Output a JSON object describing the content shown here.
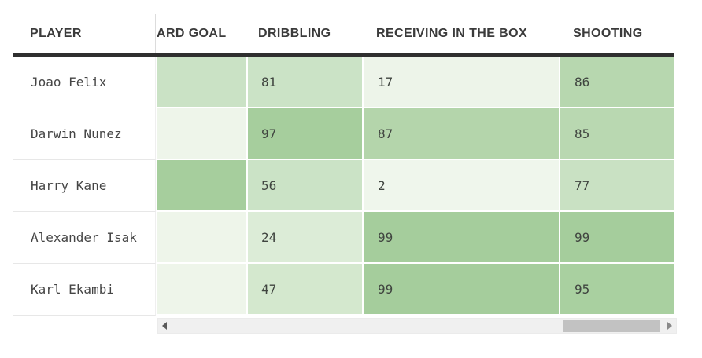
{
  "table": {
    "headers": [
      {
        "label": "PLAYER"
      },
      {
        "label": "ARD GOAL",
        "note": "clipped-by-horizontal-scroll"
      },
      {
        "label": "DRIBBLING"
      },
      {
        "label": "RECEIVING IN THE BOX"
      },
      {
        "label": "SHOOTING"
      }
    ],
    "rows": [
      {
        "player": "Joao Felix",
        "cells": [
          {
            "column": "ARD GOAL",
            "value": "",
            "color": "#cae2c5"
          },
          {
            "column": "DRIBBLING",
            "value": "81",
            "color": "#cbe3c6"
          },
          {
            "column": "RECEIVING IN THE BOX",
            "value": "17",
            "color": "#edf4e9"
          },
          {
            "column": "SHOOTING",
            "value": "86",
            "color": "#b7d7af"
          }
        ]
      },
      {
        "player": "Darwin Nunez",
        "cells": [
          {
            "column": "ARD GOAL",
            "value": "",
            "color": "#eef5ea"
          },
          {
            "column": "DRIBBLING",
            "value": "97",
            "color": "#a6ce9d"
          },
          {
            "column": "RECEIVING IN THE BOX",
            "value": "87",
            "color": "#b4d5ab"
          },
          {
            "column": "SHOOTING",
            "value": "85",
            "color": "#b9d8b1"
          }
        ]
      },
      {
        "player": "Harry Kane",
        "cells": [
          {
            "column": "ARD GOAL",
            "value": "",
            "color": "#a6ce9d"
          },
          {
            "column": "DRIBBLING",
            "value": "56",
            "color": "#cbe3c6"
          },
          {
            "column": "RECEIVING IN THE BOX",
            "value": "2",
            "color": "#eff6ec"
          },
          {
            "column": "SHOOTING",
            "value": "77",
            "color": "#c9e1c3"
          }
        ]
      },
      {
        "player": "Alexander Isak",
        "cells": [
          {
            "column": "ARD GOAL",
            "value": "",
            "color": "#eef5ea"
          },
          {
            "column": "DRIBBLING",
            "value": "24",
            "color": "#dcecd7"
          },
          {
            "column": "RECEIVING IN THE BOX",
            "value": "99",
            "color": "#a5cd9c"
          },
          {
            "column": "SHOOTING",
            "value": "99",
            "color": "#a5cd9c"
          }
        ]
      },
      {
        "player": "Karl Ekambi",
        "cells": [
          {
            "column": "ARD GOAL",
            "value": "",
            "color": "#eef5ea"
          },
          {
            "column": "DRIBBLING",
            "value": "47",
            "color": "#d4e8ce"
          },
          {
            "column": "RECEIVING IN THE BOX",
            "value": "99",
            "color": "#a5cd9c"
          },
          {
            "column": "SHOOTING",
            "value": "95",
            "color": "#a9d0a0"
          }
        ]
      }
    ]
  },
  "scrollbar": {
    "orientation": "horizontal",
    "left_arrow_icon": "scroll-left-arrow",
    "right_arrow_icon": "scroll-right-arrow",
    "thumb_position": "right"
  },
  "palette": {
    "header_rule": "#2f2f2f",
    "heat_low": "#eff6ec",
    "heat_high": "#a5cd9c",
    "scroll_track": "#f0f0f0",
    "scroll_thumb": "#c2c2c2"
  }
}
